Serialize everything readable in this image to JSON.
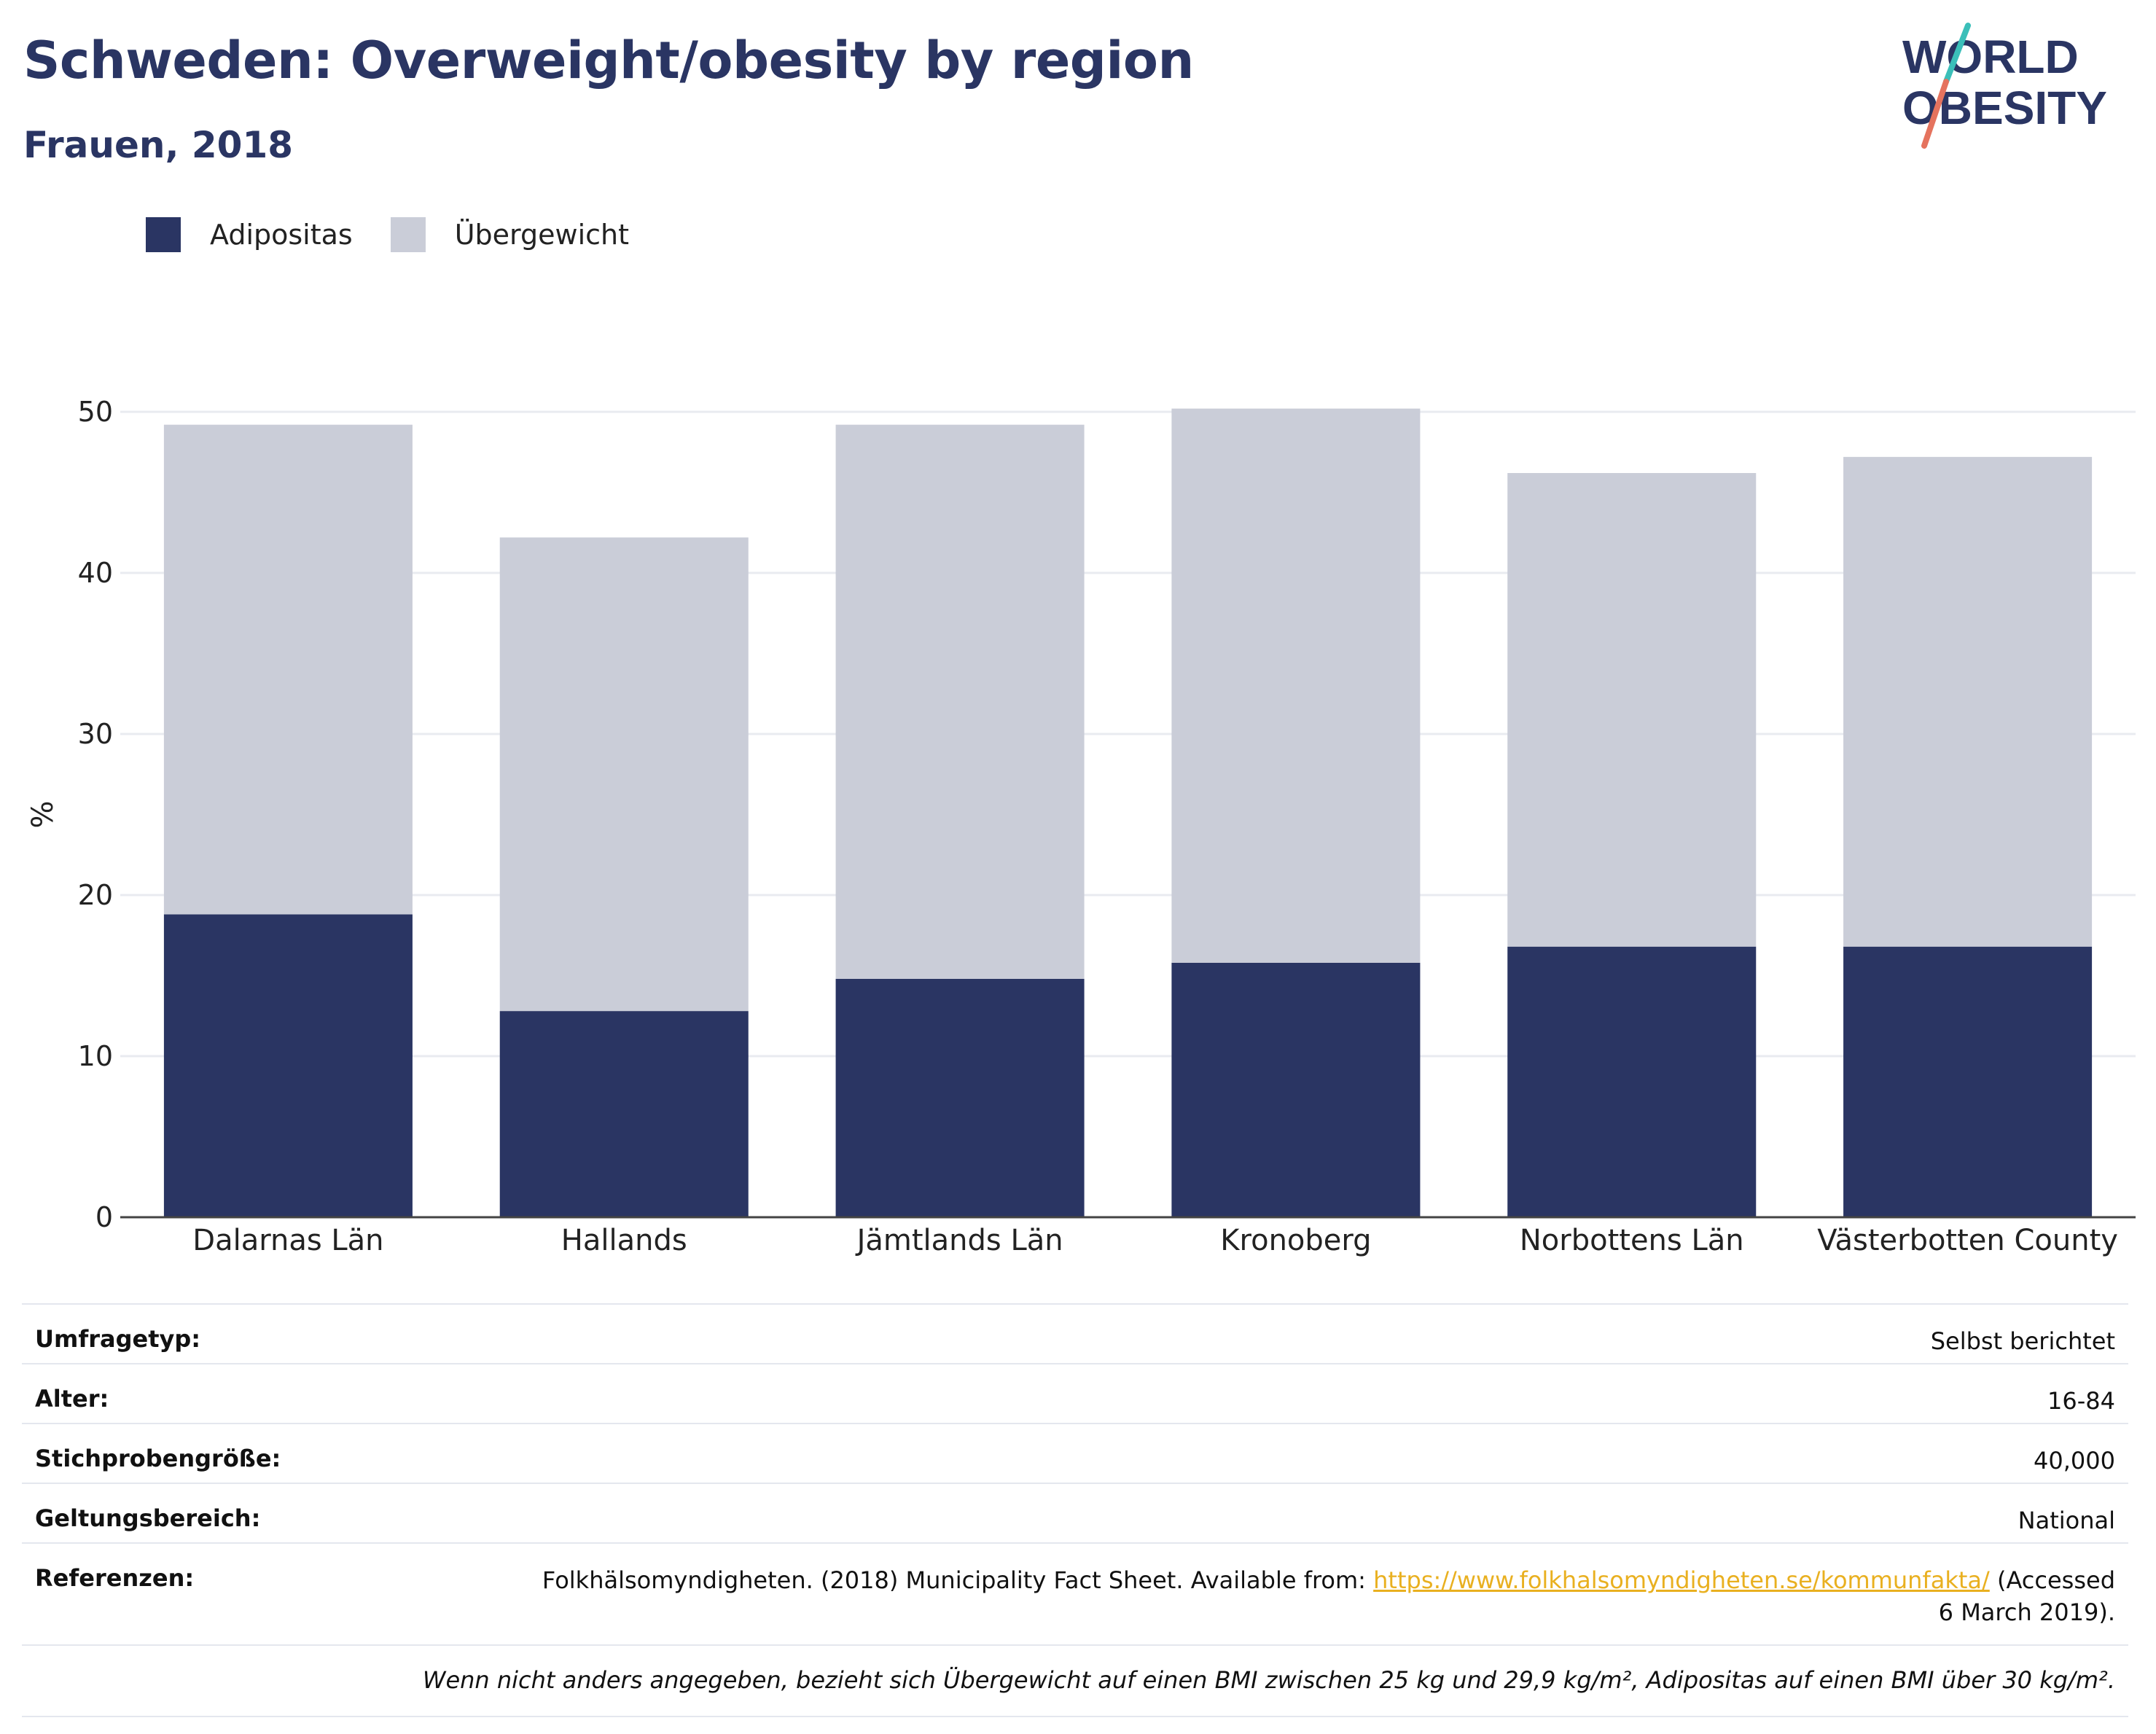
{
  "header": {
    "title": "Schweden: Overweight/obesity by region",
    "subtitle": "Frauen, 2018",
    "logo_line1": "WORLD",
    "logo_line2": "OBESITY"
  },
  "colors": {
    "title": "#2a3563",
    "adipositas": "#2a3563",
    "uebergewicht": "#cacdd8",
    "grid": "#e9ebf0",
    "link": "#e9b020",
    "logo_teal": "#3bbfb9",
    "logo_coral": "#e5735e"
  },
  "chart_data": {
    "type": "bar",
    "stacked": true,
    "categories": [
      "Dalarnas Län",
      "Hallands",
      "Jämtlands Län",
      "Kronoberg",
      "Norbottens Län",
      "Västerbotten County"
    ],
    "series": [
      {
        "name": "Adipositas",
        "values": [
          18.8,
          12.8,
          14.8,
          15.8,
          16.8,
          16.8
        ]
      },
      {
        "name": "Übergewicht",
        "values": [
          30.4,
          29.4,
          34.4,
          34.4,
          29.4,
          30.4
        ]
      }
    ],
    "ylabel": "%",
    "ylim": [
      0,
      50
    ],
    "yticks": [
      0,
      10,
      20,
      30,
      40,
      50
    ],
    "grid": true,
    "legend": "top-left"
  },
  "info": {
    "survey_type": {
      "label": "Umfragetyp:",
      "value": "Selbst berichtet"
    },
    "age": {
      "label": "Alter:",
      "value": "16-84"
    },
    "sample_size": {
      "label": "Stichprobengröße:",
      "value": "40,000"
    },
    "scope": {
      "label": "Geltungsbereich:",
      "value": "National"
    },
    "references": {
      "label": "Referenzen:",
      "text_before": "Folkhälsomyndigheten. (2018) Municipality Fact Sheet. Available from: ",
      "link": "https://www.folkhalsomyndigheten.se/kommunfakta/",
      "text_after": " (Accessed",
      "text_line2": "6 March 2019)."
    },
    "note": "Wenn nicht anders angegeben, bezieht sich Übergewicht auf einen BMI zwischen 25 kg und 29,9 kg/m², Adipositas auf einen BMI über 30 kg/m²."
  }
}
